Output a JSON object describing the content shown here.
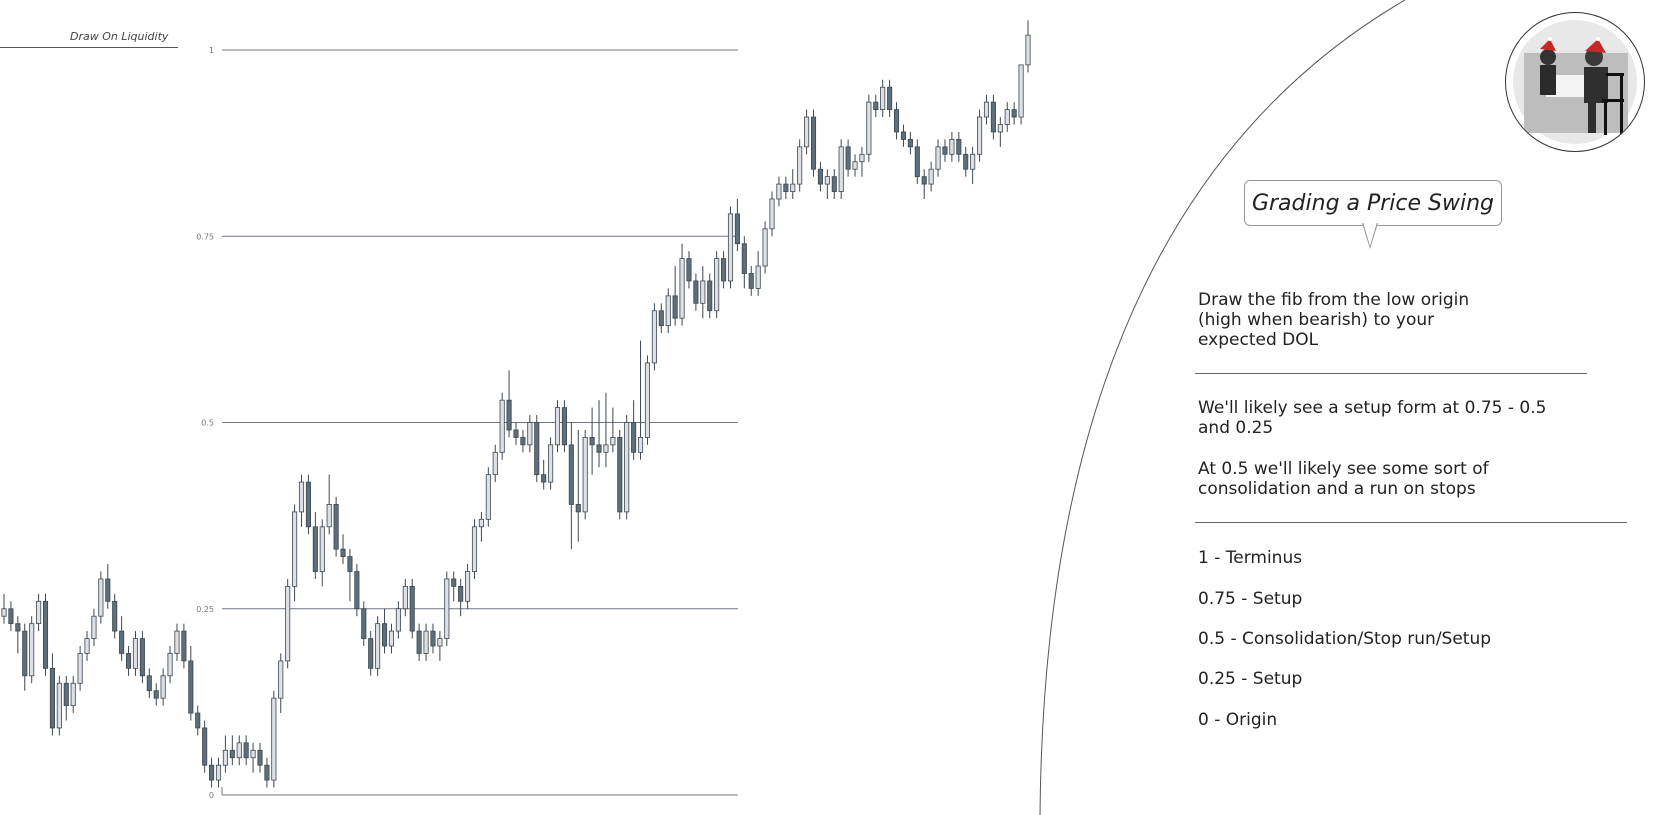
{
  "header": {
    "dol_label": "Draw On Liquidity"
  },
  "panel": {
    "title": "Grading a Price Swing",
    "intro": "Draw the fib from the low origin (high when bearish) to your expected DOL",
    "setup_note": "We'll likely see a setup form at 0.75 - 0.5 and 0.25",
    "consolidation_note": "At 0.5 we'll likely see some sort of consolidation and a run on stops",
    "legend": [
      "1 - Terminus",
      "0.75 - Setup",
      "0.5 - Consolidation/Stop run/Setup",
      "0.25 - Setup",
      "0 - Origin"
    ]
  },
  "avatar": {
    "icon": "chess-players-photo-icon"
  },
  "colors": {
    "bull_fill": "#dde0e6",
    "bear_fill": "#5e6e7a",
    "candle_border": "#3d4750",
    "fib_line": "#6f7780",
    "text": "#222222"
  },
  "chart_data": {
    "type": "candlestick",
    "title": "",
    "fib_levels": [
      {
        "value": 1,
        "label": "1"
      },
      {
        "value": 0.75,
        "label": "0.75"
      },
      {
        "value": 0.5,
        "label": "0.5"
      },
      {
        "value": 0.25,
        "label": "0.25"
      },
      {
        "value": 0,
        "label": "0"
      }
    ],
    "ylim": [
      -0.03,
      1.05
    ],
    "candles": [
      [
        0.24,
        0.27,
        0.23,
        0.25
      ],
      [
        0.25,
        0.26,
        0.22,
        0.23
      ],
      [
        0.23,
        0.24,
        0.19,
        0.22
      ],
      [
        0.22,
        0.23,
        0.14,
        0.16
      ],
      [
        0.16,
        0.24,
        0.15,
        0.23
      ],
      [
        0.23,
        0.27,
        0.22,
        0.26
      ],
      [
        0.26,
        0.27,
        0.16,
        0.17
      ],
      [
        0.17,
        0.19,
        0.08,
        0.09
      ],
      [
        0.09,
        0.16,
        0.08,
        0.15
      ],
      [
        0.15,
        0.16,
        0.1,
        0.12
      ],
      [
        0.12,
        0.16,
        0.11,
        0.15
      ],
      [
        0.15,
        0.2,
        0.14,
        0.19
      ],
      [
        0.19,
        0.22,
        0.18,
        0.21
      ],
      [
        0.21,
        0.25,
        0.2,
        0.24
      ],
      [
        0.24,
        0.3,
        0.23,
        0.29
      ],
      [
        0.29,
        0.31,
        0.25,
        0.26
      ],
      [
        0.26,
        0.27,
        0.21,
        0.22
      ],
      [
        0.22,
        0.24,
        0.18,
        0.19
      ],
      [
        0.19,
        0.2,
        0.16,
        0.17
      ],
      [
        0.17,
        0.22,
        0.16,
        0.21
      ],
      [
        0.21,
        0.22,
        0.15,
        0.16
      ],
      [
        0.16,
        0.17,
        0.13,
        0.14
      ],
      [
        0.14,
        0.15,
        0.12,
        0.13
      ],
      [
        0.13,
        0.17,
        0.12,
        0.16
      ],
      [
        0.16,
        0.2,
        0.15,
        0.19
      ],
      [
        0.19,
        0.23,
        0.18,
        0.22
      ],
      [
        0.22,
        0.23,
        0.17,
        0.18
      ],
      [
        0.18,
        0.2,
        0.1,
        0.11
      ],
      [
        0.11,
        0.12,
        0.08,
        0.09
      ],
      [
        0.09,
        0.1,
        0.03,
        0.04
      ],
      [
        0.04,
        0.05,
        0.01,
        0.02
      ],
      [
        0.02,
        0.05,
        0.01,
        0.04
      ],
      [
        0.04,
        0.08,
        0.03,
        0.06
      ],
      [
        0.06,
        0.08,
        0.04,
        0.05
      ],
      [
        0.05,
        0.08,
        0.04,
        0.07
      ],
      [
        0.07,
        0.08,
        0.04,
        0.05
      ],
      [
        0.05,
        0.07,
        0.03,
        0.06
      ],
      [
        0.06,
        0.07,
        0.03,
        0.04
      ],
      [
        0.04,
        0.05,
        0.01,
        0.02
      ],
      [
        0.02,
        0.14,
        0.01,
        0.13
      ],
      [
        0.13,
        0.19,
        0.11,
        0.18
      ],
      [
        0.18,
        0.29,
        0.17,
        0.28
      ],
      [
        0.28,
        0.39,
        0.26,
        0.38
      ],
      [
        0.38,
        0.43,
        0.36,
        0.42
      ],
      [
        0.42,
        0.43,
        0.35,
        0.36
      ],
      [
        0.36,
        0.38,
        0.29,
        0.3
      ],
      [
        0.3,
        0.37,
        0.28,
        0.36
      ],
      [
        0.36,
        0.43,
        0.35,
        0.39
      ],
      [
        0.39,
        0.4,
        0.32,
        0.33
      ],
      [
        0.33,
        0.35,
        0.31,
        0.32
      ],
      [
        0.32,
        0.33,
        0.26,
        0.3
      ],
      [
        0.3,
        0.31,
        0.24,
        0.25
      ],
      [
        0.25,
        0.26,
        0.2,
        0.21
      ],
      [
        0.21,
        0.22,
        0.16,
        0.17
      ],
      [
        0.17,
        0.24,
        0.16,
        0.23
      ],
      [
        0.23,
        0.25,
        0.19,
        0.2
      ],
      [
        0.2,
        0.23,
        0.19,
        0.22
      ],
      [
        0.22,
        0.26,
        0.21,
        0.25
      ],
      [
        0.25,
        0.29,
        0.24,
        0.28
      ],
      [
        0.28,
        0.29,
        0.21,
        0.22
      ],
      [
        0.22,
        0.23,
        0.18,
        0.19
      ],
      [
        0.19,
        0.23,
        0.18,
        0.22
      ],
      [
        0.22,
        0.23,
        0.19,
        0.2
      ],
      [
        0.2,
        0.22,
        0.18,
        0.21
      ],
      [
        0.21,
        0.3,
        0.2,
        0.29
      ],
      [
        0.29,
        0.3,
        0.26,
        0.28
      ],
      [
        0.28,
        0.29,
        0.24,
        0.26
      ],
      [
        0.26,
        0.31,
        0.25,
        0.3
      ],
      [
        0.3,
        0.37,
        0.29,
        0.36
      ],
      [
        0.36,
        0.38,
        0.34,
        0.37
      ],
      [
        0.37,
        0.44,
        0.36,
        0.43
      ],
      [
        0.43,
        0.47,
        0.42,
        0.46
      ],
      [
        0.46,
        0.54,
        0.45,
        0.53
      ],
      [
        0.53,
        0.57,
        0.48,
        0.49
      ],
      [
        0.49,
        0.5,
        0.47,
        0.48
      ],
      [
        0.48,
        0.49,
        0.46,
        0.47
      ],
      [
        0.47,
        0.51,
        0.46,
        0.5
      ],
      [
        0.5,
        0.51,
        0.42,
        0.43
      ],
      [
        0.43,
        0.45,
        0.41,
        0.42
      ],
      [
        0.42,
        0.48,
        0.41,
        0.47
      ],
      [
        0.47,
        0.53,
        0.46,
        0.52
      ],
      [
        0.52,
        0.53,
        0.46,
        0.47
      ],
      [
        0.47,
        0.5,
        0.33,
        0.39
      ],
      [
        0.39,
        0.49,
        0.34,
        0.38
      ],
      [
        0.38,
        0.49,
        0.37,
        0.48
      ],
      [
        0.48,
        0.52,
        0.43,
        0.47
      ],
      [
        0.47,
        0.53,
        0.44,
        0.46
      ],
      [
        0.46,
        0.54,
        0.44,
        0.47
      ],
      [
        0.47,
        0.52,
        0.46,
        0.48
      ],
      [
        0.48,
        0.49,
        0.37,
        0.38
      ],
      [
        0.38,
        0.51,
        0.37,
        0.5
      ],
      [
        0.5,
        0.53,
        0.45,
        0.46
      ],
      [
        0.46,
        0.61,
        0.45,
        0.48
      ],
      [
        0.48,
        0.59,
        0.47,
        0.58
      ],
      [
        0.58,
        0.66,
        0.57,
        0.65
      ],
      [
        0.65,
        0.66,
        0.62,
        0.63
      ],
      [
        0.63,
        0.68,
        0.62,
        0.67
      ],
      [
        0.67,
        0.71,
        0.63,
        0.64
      ],
      [
        0.64,
        0.74,
        0.63,
        0.72
      ],
      [
        0.72,
        0.73,
        0.68,
        0.69
      ],
      [
        0.69,
        0.7,
        0.65,
        0.66
      ],
      [
        0.66,
        0.71,
        0.64,
        0.69
      ],
      [
        0.69,
        0.7,
        0.64,
        0.65
      ],
      [
        0.65,
        0.73,
        0.64,
        0.72
      ],
      [
        0.72,
        0.73,
        0.68,
        0.69
      ],
      [
        0.69,
        0.79,
        0.68,
        0.78
      ],
      [
        0.78,
        0.8,
        0.73,
        0.74
      ],
      [
        0.74,
        0.75,
        0.68,
        0.7
      ],
      [
        0.7,
        0.71,
        0.67,
        0.68
      ],
      [
        0.68,
        0.73,
        0.67,
        0.71
      ],
      [
        0.71,
        0.77,
        0.7,
        0.76
      ],
      [
        0.76,
        0.81,
        0.75,
        0.8
      ],
      [
        0.8,
        0.83,
        0.79,
        0.82
      ],
      [
        0.82,
        0.83,
        0.8,
        0.81
      ],
      [
        0.81,
        0.84,
        0.8,
        0.82
      ],
      [
        0.82,
        0.88,
        0.81,
        0.87
      ],
      [
        0.87,
        0.92,
        0.86,
        0.91
      ],
      [
        0.91,
        0.92,
        0.83,
        0.84
      ],
      [
        0.84,
        0.85,
        0.81,
        0.82
      ],
      [
        0.82,
        0.84,
        0.8,
        0.83
      ],
      [
        0.83,
        0.84,
        0.8,
        0.81
      ],
      [
        0.81,
        0.88,
        0.8,
        0.87
      ],
      [
        0.87,
        0.88,
        0.83,
        0.84
      ],
      [
        0.84,
        0.86,
        0.83,
        0.85
      ],
      [
        0.85,
        0.87,
        0.83,
        0.86
      ],
      [
        0.86,
        0.94,
        0.85,
        0.93
      ],
      [
        0.93,
        0.94,
        0.91,
        0.92
      ],
      [
        0.92,
        0.96,
        0.91,
        0.95
      ],
      [
        0.95,
        0.96,
        0.91,
        0.92
      ],
      [
        0.92,
        0.93,
        0.88,
        0.89
      ],
      [
        0.89,
        0.9,
        0.87,
        0.88
      ],
      [
        0.88,
        0.89,
        0.86,
        0.87
      ],
      [
        0.87,
        0.88,
        0.82,
        0.83
      ],
      [
        0.83,
        0.84,
        0.8,
        0.82
      ],
      [
        0.82,
        0.85,
        0.81,
        0.84
      ],
      [
        0.84,
        0.88,
        0.83,
        0.87
      ],
      [
        0.87,
        0.88,
        0.85,
        0.86
      ],
      [
        0.86,
        0.89,
        0.85,
        0.88
      ],
      [
        0.88,
        0.89,
        0.85,
        0.86
      ],
      [
        0.86,
        0.87,
        0.83,
        0.84
      ],
      [
        0.84,
        0.87,
        0.82,
        0.86
      ],
      [
        0.86,
        0.92,
        0.85,
        0.91
      ],
      [
        0.91,
        0.94,
        0.9,
        0.93
      ],
      [
        0.93,
        0.94,
        0.88,
        0.89
      ],
      [
        0.89,
        0.91,
        0.87,
        0.9
      ],
      [
        0.9,
        0.93,
        0.89,
        0.92
      ],
      [
        0.92,
        0.93,
        0.9,
        0.91
      ],
      [
        0.91,
        0.98,
        0.9,
        0.98
      ],
      [
        0.98,
        1.04,
        0.97,
        1.02
      ]
    ]
  }
}
